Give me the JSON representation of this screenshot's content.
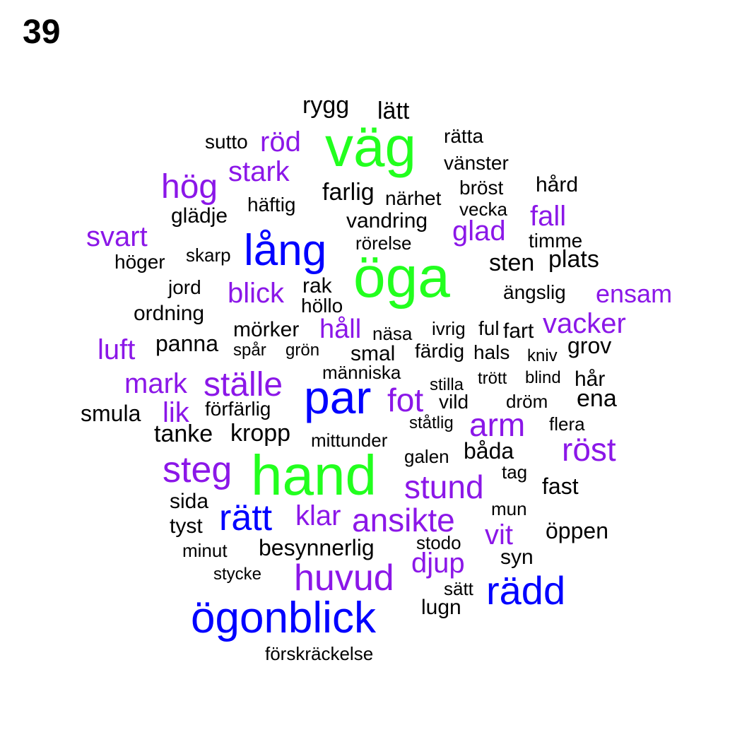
{
  "page_number": "39",
  "colors": {
    "green": "#22ff1e",
    "blue": "#0000ff",
    "purple": "#8b17e8",
    "black": "#000000"
  },
  "words": [
    {
      "text": "väg",
      "color": "green"
    },
    {
      "text": "öga",
      "color": "green"
    },
    {
      "text": "hand",
      "color": "green"
    },
    {
      "text": "lång",
      "color": "blue"
    },
    {
      "text": "par",
      "color": "blue"
    },
    {
      "text": "ögonblick",
      "color": "blue"
    },
    {
      "text": "rätt",
      "color": "blue"
    },
    {
      "text": "rädd",
      "color": "blue"
    },
    {
      "text": "röd",
      "color": "purple"
    },
    {
      "text": "stark",
      "color": "purple"
    },
    {
      "text": "hög",
      "color": "purple"
    },
    {
      "text": "svart",
      "color": "purple"
    },
    {
      "text": "fall",
      "color": "purple"
    },
    {
      "text": "glad",
      "color": "purple"
    },
    {
      "text": "blick",
      "color": "purple"
    },
    {
      "text": "ensam",
      "color": "purple"
    },
    {
      "text": "vacker",
      "color": "purple"
    },
    {
      "text": "håll",
      "color": "purple"
    },
    {
      "text": "luft",
      "color": "purple"
    },
    {
      "text": "mark",
      "color": "purple"
    },
    {
      "text": "ställe",
      "color": "purple"
    },
    {
      "text": "fot",
      "color": "purple"
    },
    {
      "text": "lik",
      "color": "purple"
    },
    {
      "text": "arm",
      "color": "purple"
    },
    {
      "text": "röst",
      "color": "purple"
    },
    {
      "text": "steg",
      "color": "purple"
    },
    {
      "text": "stund",
      "color": "purple"
    },
    {
      "text": "klar",
      "color": "purple"
    },
    {
      "text": "ansikte",
      "color": "purple"
    },
    {
      "text": "vit",
      "color": "purple"
    },
    {
      "text": "djup",
      "color": "purple"
    },
    {
      "text": "huvud",
      "color": "purple"
    },
    {
      "text": "rygg",
      "color": "black"
    },
    {
      "text": "lätt",
      "color": "black"
    },
    {
      "text": "sutto",
      "color": "black"
    },
    {
      "text": "rätta",
      "color": "black"
    },
    {
      "text": "vänster",
      "color": "black"
    },
    {
      "text": "bröst",
      "color": "black"
    },
    {
      "text": "hård",
      "color": "black"
    },
    {
      "text": "farlig",
      "color": "black"
    },
    {
      "text": "närhet",
      "color": "black"
    },
    {
      "text": "häftig",
      "color": "black"
    },
    {
      "text": "glädje",
      "color": "black"
    },
    {
      "text": "vecka",
      "color": "black"
    },
    {
      "text": "vandring",
      "color": "black"
    },
    {
      "text": "timme",
      "color": "black"
    },
    {
      "text": "rörelse",
      "color": "black"
    },
    {
      "text": "skarp",
      "color": "black"
    },
    {
      "text": "höger",
      "color": "black"
    },
    {
      "text": "sten",
      "color": "black"
    },
    {
      "text": "plats",
      "color": "black"
    },
    {
      "text": "jord",
      "color": "black"
    },
    {
      "text": "rak",
      "color": "black"
    },
    {
      "text": "ängslig",
      "color": "black"
    },
    {
      "text": "höllo",
      "color": "black"
    },
    {
      "text": "ordning",
      "color": "black"
    },
    {
      "text": "mörker",
      "color": "black"
    },
    {
      "text": "näsa",
      "color": "black"
    },
    {
      "text": "ivrig",
      "color": "black"
    },
    {
      "text": "ful",
      "color": "black"
    },
    {
      "text": "fart",
      "color": "black"
    },
    {
      "text": "panna",
      "color": "black"
    },
    {
      "text": "spår",
      "color": "black"
    },
    {
      "text": "grön",
      "color": "black"
    },
    {
      "text": "smal",
      "color": "black"
    },
    {
      "text": "färdig",
      "color": "black"
    },
    {
      "text": "hals",
      "color": "black"
    },
    {
      "text": "kniv",
      "color": "black"
    },
    {
      "text": "grov",
      "color": "black"
    },
    {
      "text": "människa",
      "color": "black"
    },
    {
      "text": "stilla",
      "color": "black"
    },
    {
      "text": "trött",
      "color": "black"
    },
    {
      "text": "blind",
      "color": "black"
    },
    {
      "text": "hår",
      "color": "black"
    },
    {
      "text": "smula",
      "color": "black"
    },
    {
      "text": "förfärlig",
      "color": "black"
    },
    {
      "text": "vild",
      "color": "black"
    },
    {
      "text": "dröm",
      "color": "black"
    },
    {
      "text": "ena",
      "color": "black"
    },
    {
      "text": "ståtlig",
      "color": "black"
    },
    {
      "text": "flera",
      "color": "black"
    },
    {
      "text": "tanke",
      "color": "black"
    },
    {
      "text": "kropp",
      "color": "black"
    },
    {
      "text": "mittunder",
      "color": "black"
    },
    {
      "text": "galen",
      "color": "black"
    },
    {
      "text": "båda",
      "color": "black"
    },
    {
      "text": "tag",
      "color": "black"
    },
    {
      "text": "fast",
      "color": "black"
    },
    {
      "text": "sida",
      "color": "black"
    },
    {
      "text": "mun",
      "color": "black"
    },
    {
      "text": "tyst",
      "color": "black"
    },
    {
      "text": "öppen",
      "color": "black"
    },
    {
      "text": "minut",
      "color": "black"
    },
    {
      "text": "besynnerlig",
      "color": "black"
    },
    {
      "text": "stodo",
      "color": "black"
    },
    {
      "text": "syn",
      "color": "black"
    },
    {
      "text": "stycke",
      "color": "black"
    },
    {
      "text": "sätt",
      "color": "black"
    },
    {
      "text": "lugn",
      "color": "black"
    },
    {
      "text": "förskräckelse",
      "color": "black"
    }
  ]
}
